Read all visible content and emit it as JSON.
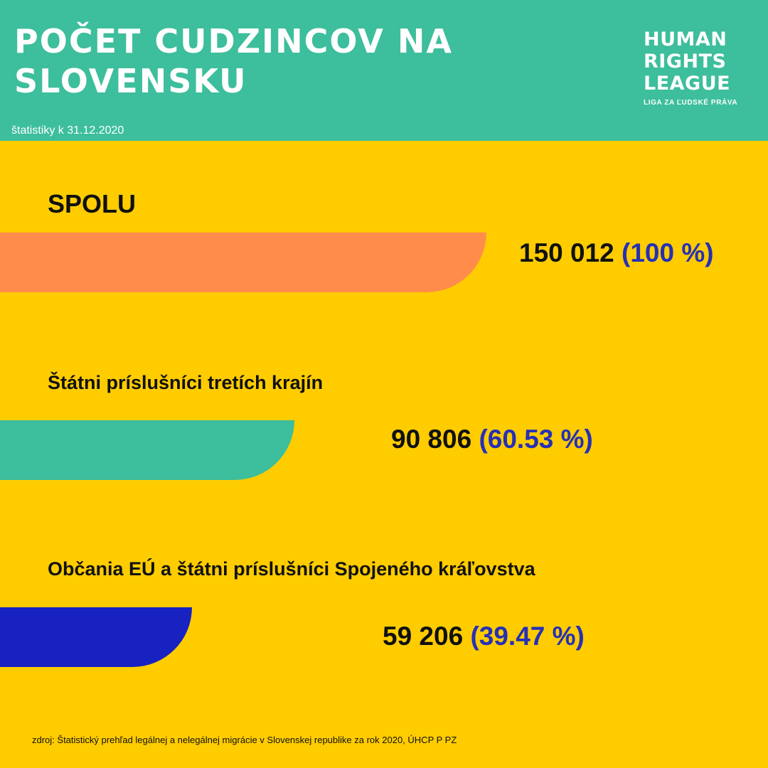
{
  "header": {
    "title_line1": "POČET CUDZINCOV NA",
    "title_line2": "SLOVENSKU",
    "subtitle": "štatistiky k 31.12.2020",
    "logo": {
      "line1": "HUMAN",
      "line2": "RIGHTS",
      "line3": "LEAGUE",
      "subline": "LIGA ZA ĽUDSKÉ PRÁVA"
    }
  },
  "colors": {
    "header_bg": "#3DBE9C",
    "page_bg": "#FFCC00",
    "bar_total": "#FF8C4B",
    "bar_third_country": "#3DBE9C",
    "bar_eu": "#1722C0",
    "percent_text": "#2630B5"
  },
  "chart_data": {
    "type": "bar",
    "orientation": "horizontal",
    "categories": [
      "SPOLU",
      "Štátni príslušníci tretích krajín",
      "Občania EÚ a štátni príslušníci Spojeného kráľovstva"
    ],
    "values": [
      150012,
      90806,
      59206
    ],
    "value_labels": [
      "150 012",
      "90 806",
      "59 206"
    ],
    "percent_labels": [
      "(100 %)",
      "(60.53 %)",
      "(39.47 %)"
    ],
    "percents": [
      100,
      60.53,
      39.47
    ],
    "bar_colors": [
      "#FF8C4B",
      "#3DBE9C",
      "#1722C0"
    ],
    "xlim": [
      0,
      150012
    ]
  },
  "footer": {
    "source": "zdroj: Štatistický prehľad legálnej a nelegálnej migrácie v Slovenskej republike za rok 2020, ÚHCP P PZ"
  }
}
